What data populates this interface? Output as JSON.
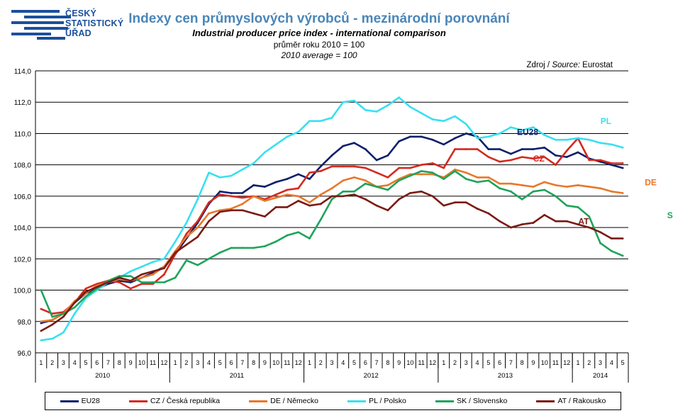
{
  "logo": {
    "line1": "ČESKÝ",
    "line2": "STATISTICKÝ",
    "line3": "ÚŘAD",
    "color": "#1b4f9c"
  },
  "header": {
    "title": "Indexy cen průmyslových výrobců - mezinárodní porovnání",
    "subtitle": "Industrial producer price index - international comparison",
    "base_cz": "průměr roku 2010 = 100",
    "base_en": "2010 average = 100",
    "source_cz": "Zdroj / ",
    "source_en": "Source:",
    "source_name": " Eurostat"
  },
  "chart_data": {
    "type": "line",
    "ylim": [
      96,
      114
    ],
    "yticks": [
      96,
      98,
      100,
      102,
      104,
      106,
      108,
      110,
      112,
      114
    ],
    "ytick_labels": [
      "96,0",
      "98,0",
      "100,0",
      "102,0",
      "104,0",
      "106,0",
      "108,0",
      "110,0",
      "112,0",
      "114,0"
    ],
    "grid": true,
    "x_month_labels": [
      "1",
      "2",
      "3",
      "4",
      "5",
      "6",
      "7",
      "8",
      "9",
      "10",
      "11",
      "12",
      "1",
      "2",
      "3",
      "4",
      "5",
      "6",
      "7",
      "8",
      "9",
      "10",
      "11",
      "12",
      "1",
      "2",
      "3",
      "4",
      "5",
      "6",
      "7",
      "8",
      "9",
      "10",
      "11",
      "12",
      "1",
      "2",
      "3",
      "4",
      "5",
      "6",
      "7",
      "8",
      "9",
      "10",
      "11",
      "12",
      "1",
      "2",
      "3",
      "4",
      "5"
    ],
    "year_groups": [
      {
        "label": "2010",
        "months": 12
      },
      {
        "label": "2011",
        "months": 12
      },
      {
        "label": "2012",
        "months": 12
      },
      {
        "label": "2013",
        "months": 12
      },
      {
        "label": "2014",
        "months": 5
      }
    ],
    "legend_position": "bottom",
    "series": [
      {
        "name": "EU28",
        "label": "EU28",
        "color": "#0e1f6b",
        "values": [
          97.9,
          98.1,
          98.5,
          99.2,
          99.8,
          100.1,
          100.4,
          100.6,
          100.5,
          100.8,
          101.1,
          101.5,
          102.3,
          103.3,
          104.3,
          105.5,
          106.3,
          106.2,
          106.2,
          106.7,
          106.6,
          106.9,
          107.1,
          107.4,
          107.1,
          107.9,
          108.6,
          109.2,
          109.4,
          109.0,
          108.3,
          108.6,
          109.5,
          109.8,
          109.8,
          109.6,
          109.3,
          109.7,
          110.0,
          109.8,
          109.0,
          109.0,
          108.7,
          109.0,
          109.0,
          109.1,
          108.6,
          108.5,
          108.8,
          108.4,
          108.2,
          108.0,
          107.8
        ]
      },
      {
        "name": "CZ / Česká republika",
        "label": "CZ",
        "color": "#d42a20",
        "values": [
          98.8,
          98.5,
          98.6,
          99.2,
          100.1,
          100.4,
          100.6,
          100.5,
          100.1,
          100.4,
          100.4,
          101.0,
          102.3,
          103.6,
          104.4,
          105.6,
          106.1,
          106.0,
          105.9,
          106.0,
          105.8,
          106.1,
          106.4,
          106.5,
          107.5,
          107.6,
          107.9,
          107.9,
          107.9,
          107.8,
          107.5,
          107.2,
          107.8,
          107.8,
          108.0,
          108.1,
          107.8,
          109.0,
          109.0,
          109.0,
          108.5,
          108.2,
          108.3,
          108.5,
          108.4,
          108.5,
          108.0,
          108.9,
          109.7,
          108.3,
          108.3,
          108.1,
          108.1
        ]
      },
      {
        "name": "DE / Německo",
        "label": "DE",
        "color": "#e8782a",
        "values": [
          98.0,
          98.1,
          98.5,
          99.3,
          99.8,
          100.3,
          100.5,
          100.7,
          100.6,
          100.8,
          101.0,
          101.5,
          102.5,
          103.4,
          104.0,
          104.9,
          105.1,
          105.2,
          105.5,
          106.0,
          105.7,
          105.9,
          106.1,
          106.0,
          105.6,
          106.1,
          106.5,
          107.0,
          107.2,
          107.0,
          106.6,
          106.7,
          107.1,
          107.4,
          107.4,
          107.4,
          107.2,
          107.7,
          107.5,
          107.2,
          107.2,
          106.8,
          106.8,
          106.7,
          106.6,
          106.9,
          106.7,
          106.6,
          106.7,
          106.6,
          106.5,
          106.3,
          106.2
        ]
      },
      {
        "name": "PL / Polsko",
        "label": "PL",
        "color": "#38e0f0",
        "values": [
          96.8,
          96.9,
          97.3,
          98.5,
          99.5,
          100.0,
          100.5,
          100.8,
          101.2,
          101.5,
          101.8,
          102.0,
          103.1,
          104.3,
          105.8,
          107.5,
          107.2,
          107.3,
          107.7,
          108.1,
          108.8,
          109.3,
          109.8,
          110.1,
          110.8,
          110.8,
          111.0,
          112.0,
          112.1,
          111.5,
          111.4,
          111.8,
          112.3,
          111.7,
          111.3,
          110.9,
          110.8,
          111.1,
          110.6,
          109.7,
          109.8,
          110.0,
          110.4,
          110.2,
          110.4,
          109.9,
          109.6,
          109.6,
          109.7,
          109.6,
          109.4,
          109.3,
          109.1
        ]
      },
      {
        "name": "SK / Slovensko",
        "label": "SK",
        "color": "#1fa35b",
        "values": [
          100.0,
          98.3,
          98.5,
          98.9,
          99.6,
          100.1,
          100.6,
          100.9,
          100.9,
          100.5,
          100.5,
          100.5,
          100.8,
          101.9,
          101.6,
          102.0,
          102.4,
          102.7,
          102.7,
          102.7,
          102.8,
          103.1,
          103.5,
          103.7,
          103.3,
          104.5,
          105.8,
          106.3,
          106.3,
          106.8,
          106.6,
          106.4,
          107.0,
          107.3,
          107.6,
          107.5,
          107.1,
          107.6,
          107.1,
          106.9,
          107.0,
          106.5,
          106.3,
          105.8,
          106.3,
          106.4,
          106.0,
          105.4,
          105.3,
          104.7,
          103.0,
          102.5,
          102.2
        ]
      },
      {
        "name": "AT / Rakousko",
        "label": "AT",
        "color": "#7a1a12",
        "values": [
          97.4,
          97.8,
          98.3,
          99.2,
          99.9,
          100.2,
          100.5,
          100.8,
          100.6,
          101.0,
          101.2,
          101.4,
          102.4,
          102.9,
          103.4,
          104.4,
          105.0,
          105.1,
          105.1,
          104.9,
          104.7,
          105.3,
          105.3,
          105.7,
          105.4,
          105.5,
          106.0,
          106.0,
          106.1,
          105.8,
          105.4,
          105.1,
          105.8,
          106.2,
          106.3,
          106.0,
          105.4,
          105.6,
          105.6,
          105.2,
          104.9,
          104.4,
          104.0,
          104.2,
          104.3,
          104.8,
          104.4,
          104.4,
          104.2,
          104.0,
          103.7,
          103.3,
          103.3
        ]
      }
    ]
  }
}
